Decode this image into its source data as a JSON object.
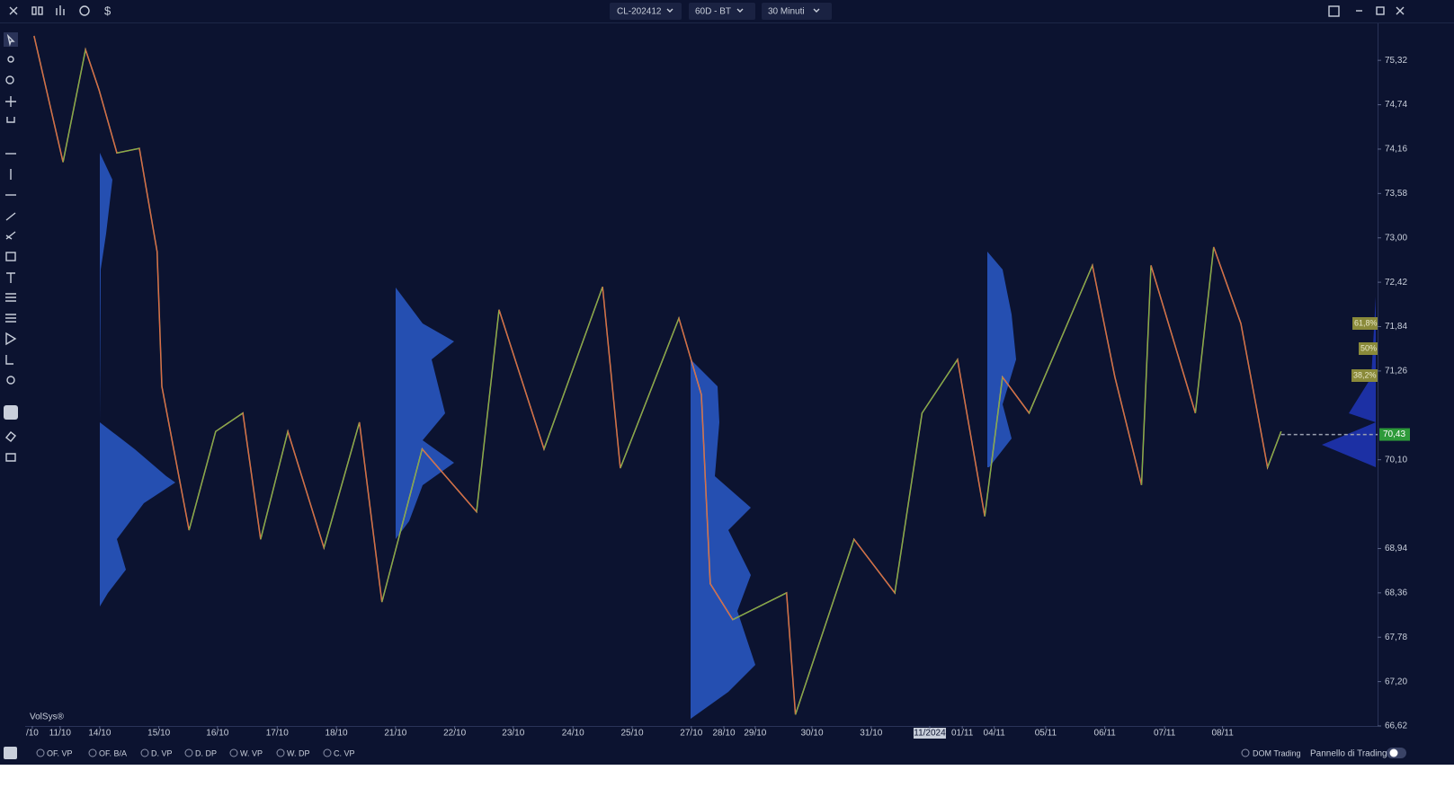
{
  "toolbar": {
    "symbol": "CL-202412",
    "range": "60D - BT",
    "timeframe": "30 Minuti"
  },
  "chart_data": {
    "type": "line",
    "watermark": "VolSys®",
    "color": "#d9a25a",
    "x": [
      0.15,
      0.64,
      1.02,
      1.25,
      1.55,
      1.93,
      2.23,
      2.31,
      2.77,
      3.22,
      3.68,
      3.98,
      4.44,
      5.05,
      5.65,
      6.03,
      6.71,
      7.63,
      8.01,
      8.77,
      9.76,
      10.06,
      11.05,
      11.43,
      11.58,
      11.96,
      12.87,
      13.02,
      14.01,
      14.7,
      15.16,
      15.76,
      16.22,
      16.52,
      16.97,
      18.04,
      18.42,
      18.87,
      19.03,
      19.78,
      20.09,
      20.55,
      21.0,
      21.23
    ],
    "values": [
      75.64,
      73.99,
      75.46,
      74.93,
      74.11,
      74.17,
      72.82,
      71.06,
      69.18,
      70.47,
      70.71,
      69.06,
      70.47,
      68.95,
      70.59,
      68.24,
      70.24,
      69.42,
      72.06,
      70.24,
      72.36,
      69.99,
      71.95,
      70.95,
      68.48,
      68.01,
      68.36,
      66.77,
      69.06,
      68.36,
      70.71,
      71.41,
      69.36,
      71.18,
      70.71,
      72.64,
      71.18,
      69.77,
      72.64,
      70.71,
      72.88,
      71.88,
      70.0,
      70.47
    ],
    "xlim": [
      0,
      22.86
    ],
    "xticks": [
      {
        "value": 0.12,
        "label": "/10"
      },
      {
        "value": 0.59,
        "label": "11/10"
      },
      {
        "value": 1.26,
        "label": "14/10"
      },
      {
        "value": 2.26,
        "label": "15/10"
      },
      {
        "value": 3.25,
        "label": "16/10"
      },
      {
        "value": 4.26,
        "label": "17/10"
      },
      {
        "value": 5.26,
        "label": "18/10"
      },
      {
        "value": 6.26,
        "label": "21/10"
      },
      {
        "value": 7.26,
        "label": "22/10"
      },
      {
        "value": 8.25,
        "label": "23/10"
      },
      {
        "value": 9.26,
        "label": "24/10"
      },
      {
        "value": 10.26,
        "label": "25/10"
      },
      {
        "value": 11.26,
        "label": "27/10"
      },
      {
        "value": 11.81,
        "label": "28/10"
      },
      {
        "value": 12.34,
        "label": "29/10"
      },
      {
        "value": 13.3,
        "label": "30/10"
      },
      {
        "value": 14.3,
        "label": "31/10"
      },
      {
        "value": 15.29,
        "label": "11/2024"
      },
      {
        "value": 15.84,
        "label": "01/11"
      },
      {
        "value": 16.38,
        "label": "04/11"
      },
      {
        "value": 17.25,
        "label": "05/11"
      },
      {
        "value": 18.25,
        "label": "06/11"
      },
      {
        "value": 19.26,
        "label": "07/11"
      },
      {
        "value": 20.24,
        "label": "08/11"
      }
    ],
    "highlighted_xtick": 17,
    "ylim": [
      66.62,
      75.78
    ],
    "yticks": [
      {
        "value": 75.32,
        "label": "75,32"
      },
      {
        "value": 74.74,
        "label": "74,74"
      },
      {
        "value": 74.16,
        "label": "74,16"
      },
      {
        "value": 73.58,
        "label": "73,58"
      },
      {
        "value": 73.0,
        "label": "73,00"
      },
      {
        "value": 72.42,
        "label": "72,42"
      },
      {
        "value": 71.84,
        "label": "71,84"
      },
      {
        "value": 71.26,
        "label": "71,26"
      },
      {
        "value": 70.1,
        "label": "70,10"
      },
      {
        "value": 68.94,
        "label": "68,94"
      },
      {
        "value": 68.36,
        "label": "68,36"
      },
      {
        "value": 67.78,
        "label": "67,78"
      },
      {
        "value": 67.2,
        "label": "67,20"
      },
      {
        "value": 66.62,
        "label": "66,62"
      }
    ],
    "last_price": {
      "value": 70.43,
      "label": "70,43"
    },
    "annotations": [
      "61,8%",
      "50%",
      "38,2%"
    ]
  },
  "bottom_bar": {
    "toggles": [
      "OF. VP",
      "OF. B/A",
      "D. VP",
      "D. DP",
      "W. VP",
      "W. DP",
      "C. VP"
    ],
    "right": [
      "DOM Trading",
      "Pannello di Trading"
    ]
  }
}
